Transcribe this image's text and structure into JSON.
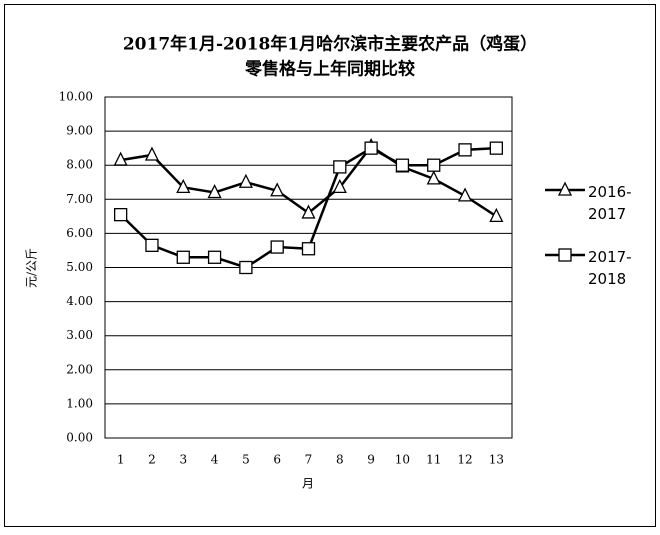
{
  "chart_data": {
    "type": "line",
    "title": "2017年1月-2018年1月哈尔滨市主要农产品（鸡蛋）",
    "subtitle": "零售格与上年同期比较",
    "y_label": "元/公斤",
    "x_label": "月",
    "categories": [
      "1",
      "2",
      "3",
      "4",
      "5",
      "6",
      "7",
      "8",
      "9",
      "10",
      "11",
      "12",
      "13"
    ],
    "series": [
      {
        "name": "2016-2017",
        "color": "#000000",
        "marker": "triangle",
        "values": [
          8.15,
          8.3,
          7.35,
          7.2,
          7.5,
          7.25,
          6.6,
          7.35,
          8.55,
          7.95,
          7.6,
          7.1,
          6.5
        ]
      },
      {
        "name": "2017-2018",
        "color": "#000000",
        "marker": "square",
        "values": [
          6.55,
          5.65,
          5.3,
          5.3,
          5.0,
          5.6,
          5.55,
          7.95,
          8.5,
          8.0,
          8.0,
          8.45,
          8.5
        ]
      }
    ],
    "ylim": [
      0,
      10
    ],
    "yticks": [
      {
        "value": 0,
        "label": "0.00"
      },
      {
        "value": 1,
        "label": "1.00"
      },
      {
        "value": 2,
        "label": "2.00"
      },
      {
        "value": 3,
        "label": "3.00"
      },
      {
        "value": 4,
        "label": "4.00"
      },
      {
        "value": 5,
        "label": "5.00"
      },
      {
        "value": 6,
        "label": "6.00"
      },
      {
        "value": 7,
        "label": "7.00"
      },
      {
        "value": 8,
        "label": "8.00"
      },
      {
        "value": 9,
        "label": "9.00"
      },
      {
        "value": 10,
        "label": "10.00"
      }
    ],
    "grid": true,
    "legend": "right"
  }
}
